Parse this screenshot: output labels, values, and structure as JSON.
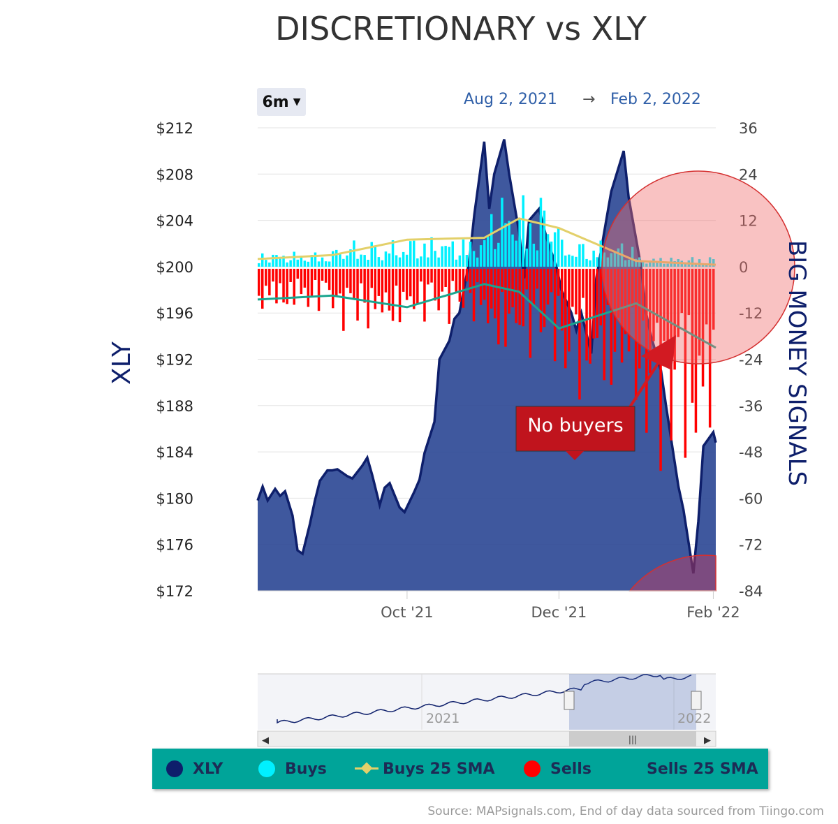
{
  "title": "DISCRETIONARY vs XLY",
  "range_selector": {
    "label": "6m",
    "from": "Aug 2, 2021",
    "arrow": "→",
    "to": "Feb 2, 2022"
  },
  "annotation": "No buyers",
  "source": "Source: MAPsignals.com, End of day data sourced from Tiingo.com",
  "colors": {
    "xly_fill": "#2f4a96",
    "xly_line": "#0e1f6b",
    "buys": "#00f0ff",
    "sells": "#ff0000",
    "buys_sma": "#e3d06a",
    "sells_sma": "#1aa58e",
    "legend_bg": "#00a499",
    "annotation": "#c0141d"
  },
  "legend": [
    {
      "label": "XLY",
      "color": "#0e1f6b"
    },
    {
      "label": "Buys",
      "color": "#00f0ff"
    },
    {
      "label": "Buys 25 SMA",
      "color": "#e3d06a"
    },
    {
      "label": "Sells",
      "color": "#ff0000"
    },
    {
      "label": "Sells 25 SMA",
      "color": ""
    }
  ],
  "navigator": {
    "labels": [
      "2021",
      "2022"
    ]
  },
  "chart_data": {
    "type": "area",
    "x_range": [
      "2021-08-02",
      "2022-02-02"
    ],
    "x_ticks": [
      "Oct '21",
      "Dec '21",
      "Feb '22"
    ],
    "left_axis": {
      "label": "XLY",
      "ticks": [
        "$212",
        "$208",
        "$204",
        "$200",
        "$196",
        "$192",
        "$188",
        "$184",
        "$180",
        "$176",
        "$172"
      ],
      "range": [
        172,
        212
      ]
    },
    "right_axis": {
      "label": "BIG MONEY SIGNALS",
      "ticks": [
        "36",
        "24",
        "12",
        "0",
        "-12",
        "-24",
        "-36",
        "-48",
        "-60",
        "-72",
        "-84"
      ],
      "range": [
        -84,
        36
      ]
    },
    "series": [
      {
        "name": "XLY",
        "x": [
          "2021-08-02",
          "2021-08-04",
          "2021-08-06",
          "2021-08-09",
          "2021-08-11",
          "2021-08-13",
          "2021-08-16",
          "2021-08-18",
          "2021-08-20",
          "2021-08-23",
          "2021-08-25",
          "2021-08-27",
          "2021-08-30",
          "2021-09-01",
          "2021-09-03",
          "2021-09-07",
          "2021-09-09",
          "2021-09-13",
          "2021-09-15",
          "2021-09-17",
          "2021-09-20",
          "2021-09-22",
          "2021-09-24",
          "2021-09-28",
          "2021-09-30",
          "2021-10-04",
          "2021-10-06",
          "2021-10-08",
          "2021-10-12",
          "2021-10-14",
          "2021-10-18",
          "2021-10-20",
          "2021-10-22",
          "2021-10-26",
          "2021-10-28",
          "2021-11-01",
          "2021-11-03",
          "2021-11-05",
          "2021-11-09",
          "2021-11-11",
          "2021-11-15",
          "2021-11-17",
          "2021-11-19",
          "2021-11-23",
          "2021-11-26",
          "2021-11-30",
          "2021-12-02",
          "2021-12-06",
          "2021-12-08",
          "2021-12-10",
          "2021-12-14",
          "2021-12-16",
          "2021-12-20",
          "2021-12-22",
          "2021-12-27",
          "2021-12-29",
          "2022-01-03",
          "2022-01-05",
          "2022-01-07",
          "2022-01-11",
          "2022-01-13",
          "2022-01-18",
          "2022-01-20",
          "2022-01-24",
          "2022-01-26",
          "2022-01-28",
          "2022-02-01",
          "2022-02-02"
        ],
        "values": [
          179.8,
          181.0,
          179.8,
          180.8,
          180.2,
          180.6,
          178.5,
          175.5,
          175.2,
          177.8,
          179.8,
          181.5,
          182.4,
          182.4,
          182.5,
          181.9,
          181.7,
          182.8,
          183.5,
          182.0,
          179.4,
          180.9,
          181.3,
          179.2,
          178.8,
          180.6,
          181.6,
          183.9,
          186.6,
          192.0,
          193.6,
          195.5,
          196.0,
          200.5,
          204.5,
          210.8,
          205.0,
          208.0,
          211.0,
          208.0,
          203.0,
          199.0,
          204.0,
          205.0,
          202.5,
          200.0,
          198.0,
          196.0,
          194.5,
          196.0,
          192.5,
          199.0,
          204.0,
          206.5,
          210.0,
          206.0,
          200.0,
          196.0,
          194.0,
          191.0,
          188.0,
          181.0,
          179.0,
          173.5,
          178.0,
          184.5,
          185.7,
          184.8
        ]
      },
      {
        "name": "Buys",
        "x": [
          "2021-08",
          "2021-09",
          "2021-10",
          "2021-11",
          "2021-12",
          "2022-01"
        ],
        "values": [
          3,
          5,
          6,
          14,
          5,
          2
        ]
      },
      {
        "name": "Buys 25 SMA",
        "x": [
          "2021-08-02",
          "2021-09-01",
          "2021-10-01",
          "2021-11-01",
          "2021-11-15",
          "2021-12-01",
          "2022-01-01",
          "2022-02-02"
        ],
        "values": [
          2,
          3,
          7,
          7.5,
          12.5,
          10,
          1.5,
          0.5
        ]
      },
      {
        "name": "Sells",
        "x": [
          "2021-08",
          "2021-09",
          "2021-10",
          "2021-11",
          "2021-12",
          "2022-01"
        ],
        "values": [
          -10,
          -14,
          -12,
          -20,
          -30,
          -45
        ]
      },
      {
        "name": "Sells 25 SMA",
        "x": [
          "2021-08-02",
          "2021-09-01",
          "2021-10-01",
          "2021-11-01",
          "2021-11-15",
          "2021-12-01",
          "2022-01-01",
          "2022-02-02"
        ],
        "values": [
          -8.5,
          -7.5,
          -10.5,
          -4.5,
          -6.5,
          -16,
          -9.5,
          -21
        ]
      }
    ]
  }
}
